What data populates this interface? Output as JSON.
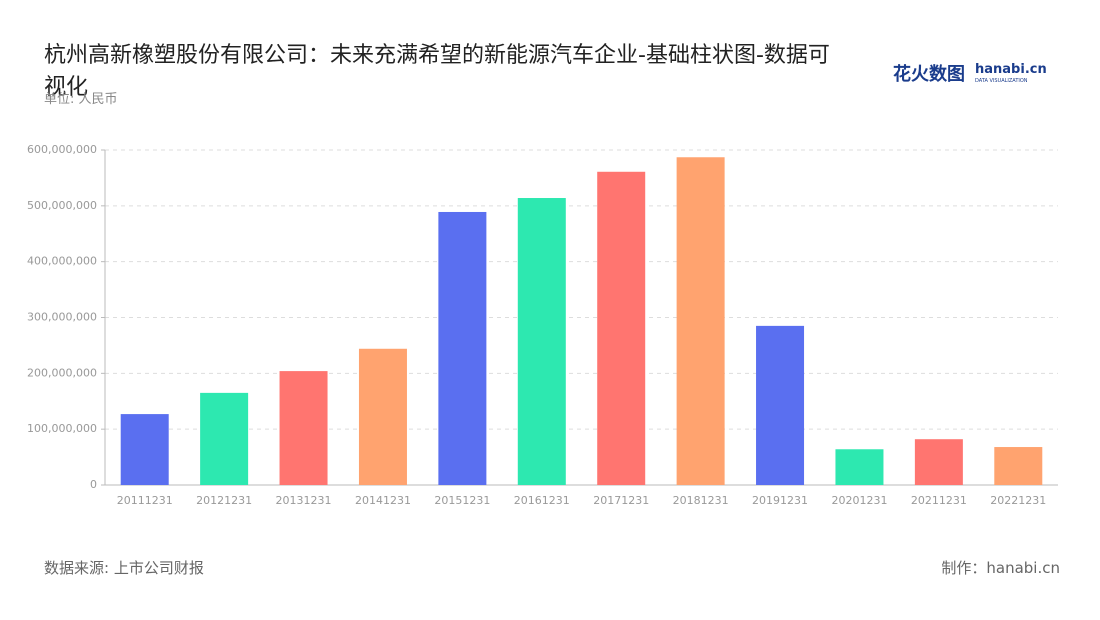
{
  "chart_data": {
    "type": "bar",
    "title": "杭州高新橡塑股份有限公司：未来充满希望的新能源汽车企业-基础柱状图-数据可视化",
    "subtitle": "单位: 人民币",
    "logo": "花火数图",
    "logo_brand": "hanabi.cn",
    "logo_tagline": "DATA VISUALIZATION",
    "source": "数据来源: 上市公司财报",
    "credit": "制作：hanabi.cn",
    "categories": [
      "20111231",
      "20121231",
      "20131231",
      "20141231",
      "20151231",
      "20161231",
      "20171231",
      "20181231",
      "20191231",
      "20201231",
      "20211231",
      "20221231"
    ],
    "values": [
      127000000,
      165000000,
      204000000,
      244000000,
      489000000,
      514000000,
      561000000,
      587000000,
      285000000,
      64000000,
      82000000,
      68000000
    ],
    "colors": [
      "#5a6ff0",
      "#2de8b0",
      "#ff7570",
      "#ffa36f"
    ],
    "ylim": [
      0,
      600000000
    ],
    "yticks": [
      0,
      {
        "value": 100000000,
        "label": "100,000,000"
      },
      {
        "value": 200000000,
        "label": "200,000,000"
      },
      {
        "value": 300000000,
        "label": "300,000,000"
      },
      {
        "value": 400000000,
        "label": "400,000,000"
      },
      {
        "value": 500000000,
        "label": "500,000,000"
      },
      {
        "value": 600000000,
        "label": "600,000,000"
      }
    ],
    "grid": true
  }
}
